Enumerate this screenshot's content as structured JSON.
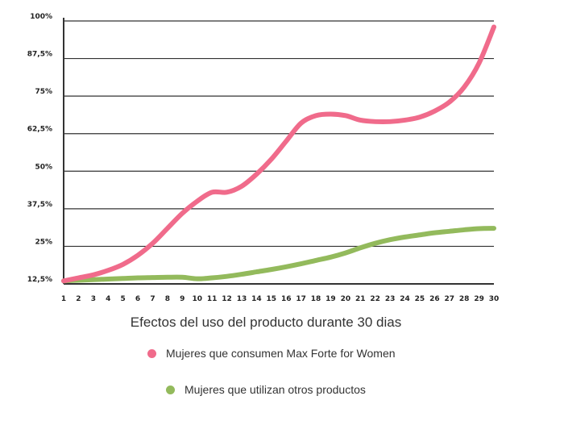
{
  "chart_data": {
    "type": "line",
    "caption": "Efectos del uso del producto durante 30 dias",
    "x": [
      1,
      2,
      3,
      4,
      5,
      6,
      7,
      8,
      9,
      10,
      11,
      12,
      13,
      14,
      15,
      16,
      17,
      18,
      19,
      20,
      21,
      22,
      23,
      24,
      25,
      26,
      27,
      28,
      29,
      30
    ],
    "y_ticks": [
      "12,5%",
      "25%",
      "37,5%",
      "50%",
      "62,5%",
      "75%",
      "87,5%",
      "100%"
    ],
    "ylim": [
      12.5,
      100
    ],
    "grid": true,
    "series": [
      {
        "name": "Mujeres que consumen Max Forte for Women",
        "color": "#f06b8b",
        "values": [
          13.5,
          14.5,
          15.5,
          17,
          19,
          22,
          26,
          31,
          36,
          40,
          43,
          43,
          45,
          49,
          54,
          60,
          66,
          68.5,
          69,
          68.5,
          67,
          66.5,
          66.5,
          67,
          68,
          70,
          73,
          78,
          86,
          98
        ]
      },
      {
        "name": "Mujeres que utilizan otros productos",
        "color": "#93ba5c",
        "values": [
          13.5,
          13.7,
          13.9,
          14.1,
          14.3,
          14.5,
          14.6,
          14.7,
          14.7,
          14.2,
          14.5,
          15,
          15.7,
          16.5,
          17.3,
          18.2,
          19.2,
          20.3,
          21.4,
          22.8,
          24.5,
          26,
          27.2,
          28.1,
          28.8,
          29.5,
          30,
          30.5,
          30.9,
          31
        ]
      }
    ]
  }
}
